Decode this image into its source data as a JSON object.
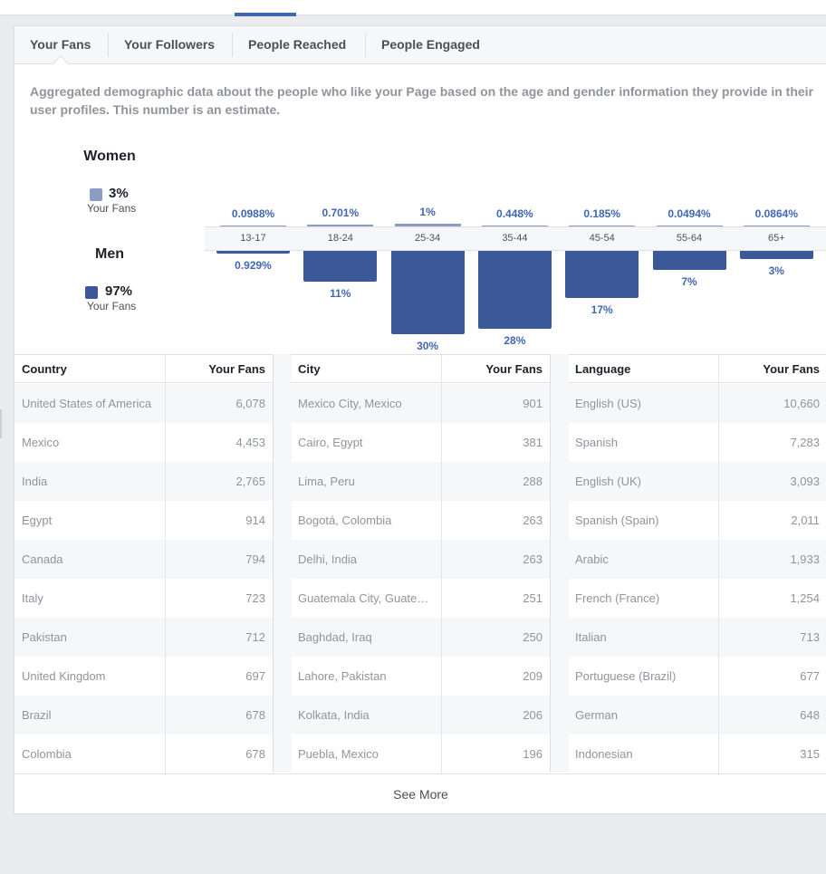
{
  "tabs": [
    {
      "label": "Your Fans",
      "active": true
    },
    {
      "label": "Your Followers",
      "active": false
    },
    {
      "label": "People Reached",
      "active": false
    },
    {
      "label": "People Engaged",
      "active": false
    }
  ],
  "description": "Aggregated demographic data about the people who like your Page based on the age and gender information they provide in their user profiles. This number is an estimate.",
  "legend": {
    "women": {
      "heading": "Women",
      "pct": "3%",
      "sub": "Your Fans",
      "color": "#8b9dc3"
    },
    "men": {
      "heading": "Men",
      "pct": "97%",
      "sub": "Your Fans",
      "color": "#3b5998"
    }
  },
  "chart_data": {
    "type": "bar",
    "categories": [
      "13-17",
      "18-24",
      "25-34",
      "35-44",
      "45-54",
      "55-64",
      "65+"
    ],
    "series": [
      {
        "name": "Women",
        "values": [
          0.0988,
          0.701,
          1,
          0.448,
          0.185,
          0.0494,
          0.0864
        ],
        "labels": [
          "0.0988%",
          "0.701%",
          "1%",
          "0.448%",
          "0.185%",
          "0.0494%",
          "0.0864%"
        ],
        "color": "#8b9dc3"
      },
      {
        "name": "Men",
        "values": [
          0.929,
          11,
          30,
          28,
          17,
          7,
          3
        ],
        "labels": [
          "0.929%",
          "11%",
          "30%",
          "28%",
          "17%",
          "7%",
          "3%"
        ],
        "color": "#3b5998"
      }
    ]
  },
  "tables": [
    {
      "col1": "Country",
      "col2": "Your Fans",
      "rows": [
        [
          "United States of America",
          "6,078"
        ],
        [
          "Mexico",
          "4,453"
        ],
        [
          "India",
          "2,765"
        ],
        [
          "Egypt",
          "914"
        ],
        [
          "Canada",
          "794"
        ],
        [
          "Italy",
          "723"
        ],
        [
          "Pakistan",
          "712"
        ],
        [
          "United Kingdom",
          "697"
        ],
        [
          "Brazil",
          "678"
        ],
        [
          "Colombia",
          "678"
        ]
      ]
    },
    {
      "col1": "City",
      "col2": "Your Fans",
      "rows": [
        [
          "Mexico City, Mexico",
          "901"
        ],
        [
          "Cairo, Egypt",
          "381"
        ],
        [
          "Lima, Peru",
          "288"
        ],
        [
          "Bogotá, Colombia",
          "263"
        ],
        [
          "Delhi, India",
          "263"
        ],
        [
          "Guatemala City, Guatem…",
          "251"
        ],
        [
          "Baghdad, Iraq",
          "250"
        ],
        [
          "Lahore, Pakistan",
          "209"
        ],
        [
          "Kolkata, India",
          "206"
        ],
        [
          "Puebla, Mexico",
          "196"
        ]
      ]
    },
    {
      "col1": "Language",
      "col2": "Your Fans",
      "rows": [
        [
          "English (US)",
          "10,660"
        ],
        [
          "Spanish",
          "7,283"
        ],
        [
          "English (UK)",
          "3,093"
        ],
        [
          "Spanish (Spain)",
          "2,011"
        ],
        [
          "Arabic",
          "1,933"
        ],
        [
          "French (France)",
          "1,254"
        ],
        [
          "Italian",
          "713"
        ],
        [
          "Portuguese (Brazil)",
          "677"
        ],
        [
          "German",
          "648"
        ],
        [
          "Indonesian",
          "315"
        ]
      ]
    }
  ],
  "see_more": "See More"
}
